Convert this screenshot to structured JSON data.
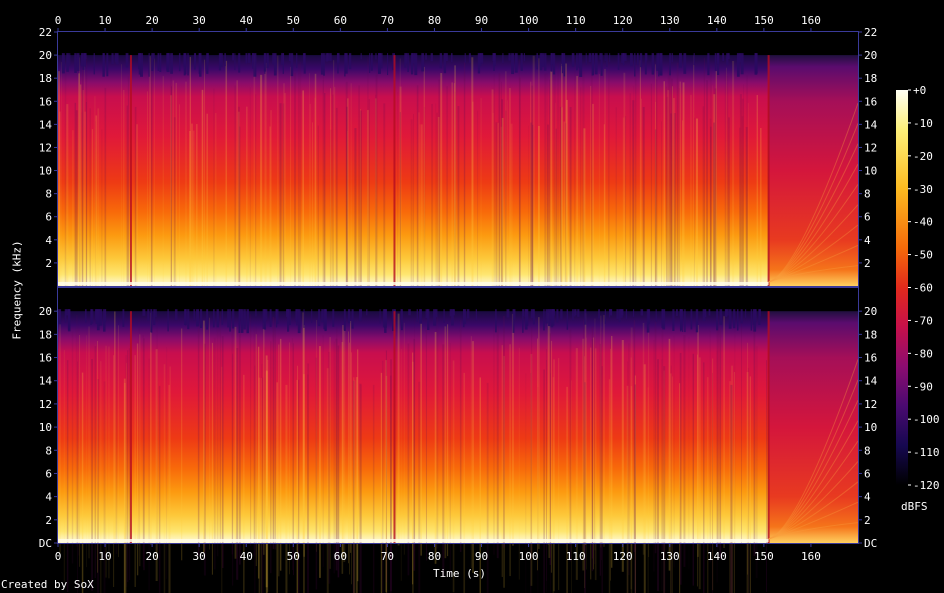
{
  "chart_data": {
    "type": "heatmap",
    "title": "",
    "xlabel": "Time (s)",
    "ylabel": "Frequency (kHz)",
    "x_ticks": [
      0,
      10,
      20,
      30,
      40,
      50,
      60,
      70,
      80,
      90,
      100,
      110,
      120,
      130,
      140,
      150,
      160
    ],
    "xlim": [
      0,
      170
    ],
    "y_ticks_top": [
      "2",
      "4",
      "6",
      "8",
      "10",
      "12",
      "14",
      "16",
      "18",
      "20",
      "22"
    ],
    "y_ticks_bottom": [
      "DC",
      "2",
      "4",
      "6",
      "8",
      "10",
      "12",
      "14",
      "16",
      "18",
      "20"
    ],
    "ylim": [
      0,
      22
    ],
    "channels": 2,
    "colorbar": {
      "label": "dBFS",
      "ticks": [
        "+0",
        "-10",
        "-20",
        "-30",
        "-40",
        "-50",
        "-60",
        "-70",
        "-80",
        "-90",
        "-100",
        "-110",
        "-120"
      ],
      "range": [
        -120,
        0
      ]
    },
    "description_features": {
      "music_end_s": 151,
      "total_duration_s": 170,
      "upper_cutoff_khz": 20
    }
  },
  "footer": {
    "credit": "Created by SoX"
  },
  "colors": {
    "background": "#000000",
    "axis": "#3a3a9a",
    "text": "#ffffff"
  }
}
